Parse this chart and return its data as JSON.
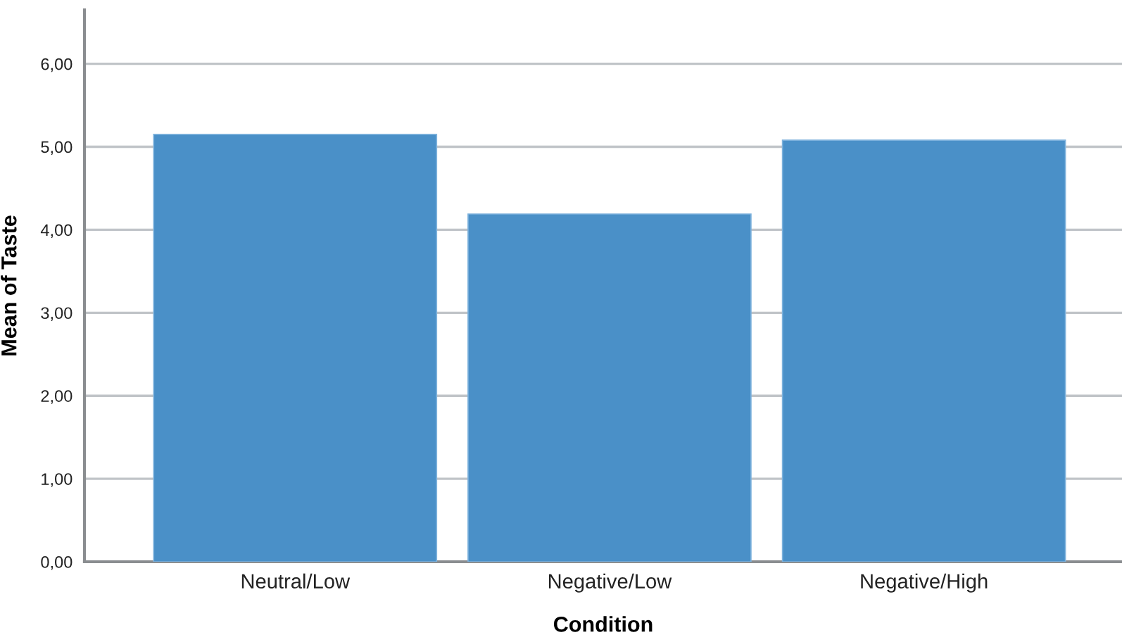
{
  "chart_data": {
    "type": "bar",
    "xlabel": "Condition",
    "ylabel": "Mean of Taste",
    "categories": [
      "Neutral/Low",
      "Negative/Low",
      "Negative/High"
    ],
    "values": [
      5.15,
      4.19,
      5.08
    ],
    "color": "#4a90c8",
    "ylim": [
      0,
      6.65
    ],
    "yticks": [
      {
        "value": 0,
        "label": "0,00"
      },
      {
        "value": 1,
        "label": "1,00"
      },
      {
        "value": 2,
        "label": "2,00"
      },
      {
        "value": 3,
        "label": "3,00"
      },
      {
        "value": 4,
        "label": "4,00"
      },
      {
        "value": 5,
        "label": "5,00"
      },
      {
        "value": 6,
        "label": "6,00"
      }
    ],
    "grid": "y"
  }
}
